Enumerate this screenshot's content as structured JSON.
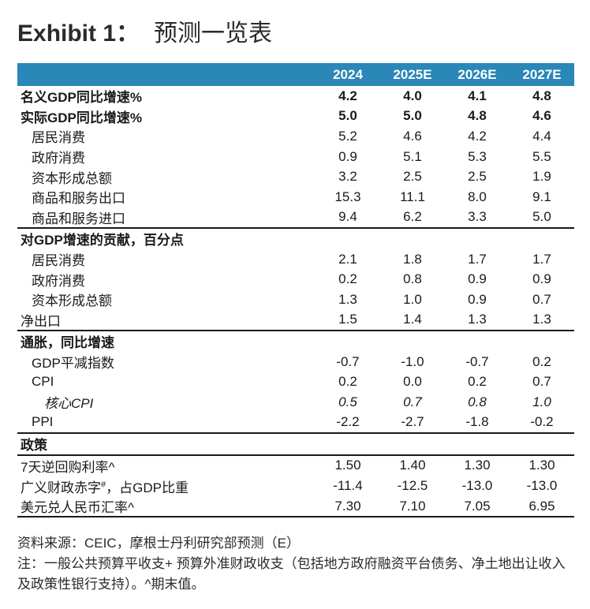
{
  "header": {
    "exhibit": "Exhibit 1：",
    "title": "预测一览表"
  },
  "table": {
    "columns": [
      "",
      "2024",
      "2025E",
      "2026E",
      "2027E"
    ],
    "rows": [
      {
        "label": "名义GDP同比增速%",
        "values": [
          "4.2",
          "4.0",
          "4.1",
          "4.8"
        ]
      },
      {
        "label": "实际GDP同比增速%",
        "values": [
          "5.0",
          "5.0",
          "4.8",
          "4.6"
        ]
      },
      {
        "label": "居民消费",
        "values": [
          "5.2",
          "4.6",
          "4.2",
          "4.4"
        ]
      },
      {
        "label": "政府消费",
        "values": [
          "0.9",
          "5.1",
          "5.3",
          "5.5"
        ]
      },
      {
        "label": "资本形成总额",
        "values": [
          "3.2",
          "2.5",
          "2.5",
          "1.9"
        ]
      },
      {
        "label": "商品和服务出口",
        "values": [
          "15.3",
          "11.1",
          "8.0",
          "9.1"
        ]
      },
      {
        "label": "商品和服务进口",
        "values": [
          "9.4",
          "6.2",
          "3.3",
          "5.0"
        ]
      },
      {
        "label": "对GDP增速的贡献，百分点",
        "values": [
          "",
          "",
          "",
          ""
        ]
      },
      {
        "label": "居民消费",
        "values": [
          "2.1",
          "1.8",
          "1.7",
          "1.7"
        ]
      },
      {
        "label": "政府消费",
        "values": [
          "0.2",
          "0.8",
          "0.9",
          "0.9"
        ]
      },
      {
        "label": "资本形成总额",
        "values": [
          "1.3",
          "1.0",
          "0.9",
          "0.7"
        ]
      },
      {
        "label": "净出口",
        "values": [
          "1.5",
          "1.4",
          "1.3",
          "1.3"
        ]
      },
      {
        "label": "通胀，同比增速",
        "values": [
          "",
          "",
          "",
          ""
        ]
      },
      {
        "label": "GDP平减指数",
        "values": [
          "-0.7",
          "-1.0",
          "-0.7",
          "0.2"
        ]
      },
      {
        "label": "CPI",
        "values": [
          "0.2",
          "0.0",
          "0.2",
          "0.7"
        ]
      },
      {
        "label": "核心CPI",
        "values": [
          "0.5",
          "0.7",
          "0.8",
          "1.0"
        ]
      },
      {
        "label": "PPI",
        "values": [
          "-2.2",
          "-2.7",
          "-1.8",
          "-0.2"
        ]
      },
      {
        "label": "政策",
        "values": [
          "",
          "",
          "",
          ""
        ]
      },
      {
        "label": "7天逆回购利率^",
        "values": [
          "1.50",
          "1.40",
          "1.30",
          "1.30"
        ]
      },
      {
        "label": "广义财政赤字",
        "label_sup": "#",
        "label_tail": "，占GDP比重",
        "values": [
          "-11.4",
          "-12.5",
          "-13.0",
          "-13.0"
        ]
      },
      {
        "label": "美元兑人民币汇率^",
        "values": [
          "7.30",
          "7.10",
          "7.05",
          "6.95"
        ]
      }
    ]
  },
  "notes": {
    "source": "资料来源：CEIC，摩根士丹利研究部预测（E）",
    "note": "注：一般公共预算平收支+ 预算外准财政收支（包括地方政府融资平台债务、净土地出让收入及政策性银行支持）。^期末值。"
  },
  "colors": {
    "header_bg": "#2a87b8",
    "header_text": "#ffffff"
  }
}
